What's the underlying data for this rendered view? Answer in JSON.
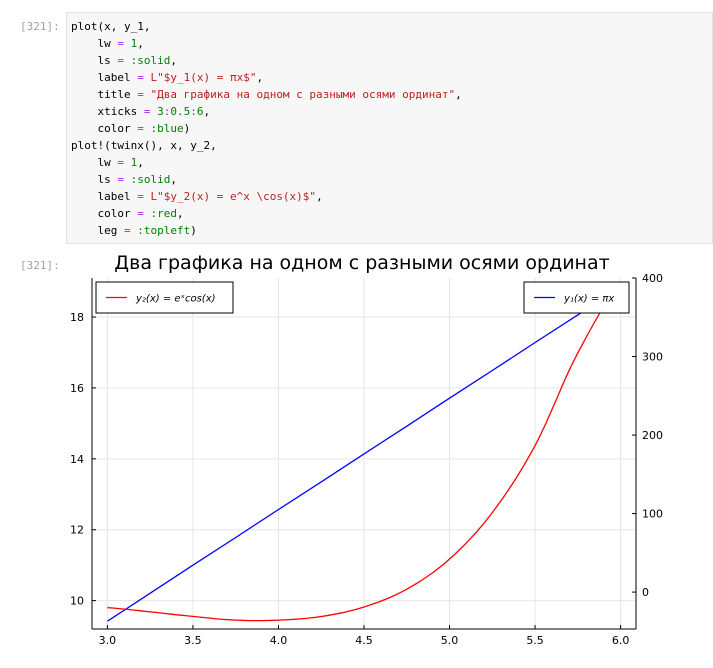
{
  "cell": {
    "in_prompt": "[321]:",
    "out_prompt": "[321]:",
    "code_lines": [
      [
        {
          "t": "plot(x, y_1,",
          "c": ""
        }
      ],
      [
        {
          "t": "    lw ",
          "c": ""
        },
        {
          "t": "=",
          "c": "t-op"
        },
        {
          "t": " ",
          "c": ""
        },
        {
          "t": "1",
          "c": "t-num"
        },
        {
          "t": ",",
          "c": ""
        }
      ],
      [
        {
          "t": "    ls ",
          "c": ""
        },
        {
          "t": "=",
          "c": "t-op"
        },
        {
          "t": " ",
          "c": ""
        },
        {
          "t": ":solid",
          "c": "t-sym"
        },
        {
          "t": ",",
          "c": ""
        }
      ],
      [
        {
          "t": "    label ",
          "c": ""
        },
        {
          "t": "=",
          "c": "t-op"
        },
        {
          "t": " ",
          "c": ""
        },
        {
          "t": "L\"$y_1(x) = πx$\"",
          "c": "t-str"
        },
        {
          "t": ",",
          "c": ""
        }
      ],
      [
        {
          "t": "    title ",
          "c": ""
        },
        {
          "t": "=",
          "c": "t-op"
        },
        {
          "t": " ",
          "c": ""
        },
        {
          "t": "\"Два графика на одном с разными осями ординат\"",
          "c": "t-str"
        },
        {
          "t": ",",
          "c": ""
        }
      ],
      [
        {
          "t": "    xticks ",
          "c": ""
        },
        {
          "t": "=",
          "c": "t-op"
        },
        {
          "t": " ",
          "c": ""
        },
        {
          "t": "3",
          "c": "t-num"
        },
        {
          "t": ":",
          "c": "t-op"
        },
        {
          "t": "0.5",
          "c": "t-num"
        },
        {
          "t": ":",
          "c": "t-op"
        },
        {
          "t": "6",
          "c": "t-num"
        },
        {
          "t": ",",
          "c": ""
        }
      ],
      [
        {
          "t": "    color ",
          "c": ""
        },
        {
          "t": "=",
          "c": "t-op"
        },
        {
          "t": " ",
          "c": ""
        },
        {
          "t": ":blue",
          "c": "t-sym"
        },
        {
          "t": ")",
          "c": ""
        }
      ],
      [
        {
          "t": "plot!(twinx(), x, y_2,",
          "c": ""
        }
      ],
      [
        {
          "t": "    lw ",
          "c": ""
        },
        {
          "t": "=",
          "c": "t-op"
        },
        {
          "t": " ",
          "c": ""
        },
        {
          "t": "1",
          "c": "t-num"
        },
        {
          "t": ",",
          "c": ""
        }
      ],
      [
        {
          "t": "    ls ",
          "c": ""
        },
        {
          "t": "=",
          "c": "t-op"
        },
        {
          "t": " ",
          "c": ""
        },
        {
          "t": ":solid",
          "c": "t-sym"
        },
        {
          "t": ",",
          "c": ""
        }
      ],
      [
        {
          "t": "    label ",
          "c": ""
        },
        {
          "t": "=",
          "c": "t-op"
        },
        {
          "t": " ",
          "c": ""
        },
        {
          "t": "L\"$y_2(x) = e^x \\cos(x)$\"",
          "c": "t-str"
        },
        {
          "t": ",",
          "c": ""
        }
      ],
      [
        {
          "t": "    color ",
          "c": ""
        },
        {
          "t": "=",
          "c": "t-op"
        },
        {
          "t": " ",
          "c": ""
        },
        {
          "t": ":red",
          "c": "t-sym"
        },
        {
          "t": ",",
          "c": ""
        }
      ],
      [
        {
          "t": "    leg ",
          "c": ""
        },
        {
          "t": "=",
          "c": "t-op"
        },
        {
          "t": " ",
          "c": ""
        },
        {
          "t": ":topleft",
          "c": "t-sym"
        },
        {
          "t": ")",
          "c": ""
        }
      ]
    ]
  },
  "chart_data": {
    "type": "line",
    "title": "Два графика на одном с разными осями ординат",
    "x": [
      3.0,
      3.25,
      3.5,
      3.75,
      4.0,
      4.25,
      4.5,
      4.75,
      5.0,
      5.25,
      5.5,
      5.75,
      6.0
    ],
    "xticks": [
      "3.0",
      "3.5",
      "4.0",
      "4.5",
      "5.0",
      "5.5",
      "6.0"
    ],
    "xlim": [
      2.91,
      6.09
    ],
    "left_axis": {
      "ylim": [
        9.2,
        19.1
      ],
      "ticks": [
        "10",
        "12",
        "14",
        "16",
        "18"
      ]
    },
    "right_axis": {
      "ylim": [
        -47,
        400
      ],
      "ticks": [
        "0",
        "100",
        "200",
        "300",
        "400"
      ]
    },
    "grid": true,
    "series": [
      {
        "name": "y₁(x) = πx",
        "axis": "left",
        "color": "#0000ff",
        "values": [
          9.42,
          10.21,
          11.0,
          11.78,
          12.57,
          13.35,
          14.14,
          14.92,
          15.71,
          16.49,
          17.28,
          18.06,
          18.85
        ],
        "legend_position": "top-right"
      },
      {
        "name": "y₂(x) = eˣcos(x)",
        "axis": "right",
        "color": "#ff0000",
        "values": [
          -19.9,
          -25.2,
          -31.0,
          -35.7,
          -35.7,
          -31.1,
          -19.0,
          3.7,
          42.1,
          101.2,
          186.6,
          304.6,
          388.6
        ],
        "legend_position": "top-left"
      }
    ]
  }
}
